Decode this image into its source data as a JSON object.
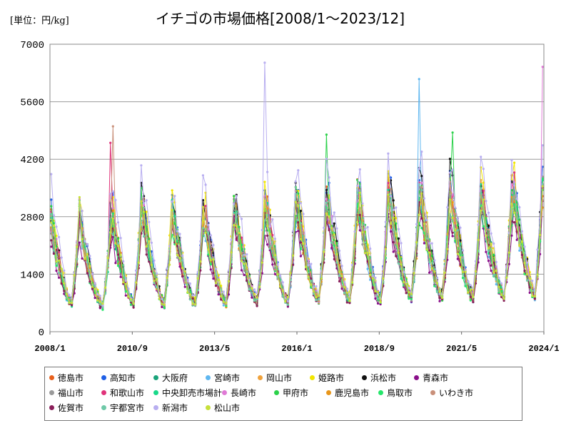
{
  "header": {
    "unit_label": "[単位：円/kg]",
    "title": "イチゴの市場価格[2008/1～2023/12]"
  },
  "chart_data": {
    "type": "line",
    "title": "イチゴの市場価格[2008/1～2023/12]",
    "ylabel": "[単位：円/kg]",
    "xlabel": "",
    "ylim": [
      0,
      7000
    ],
    "yticks": [
      0,
      1400,
      2800,
      4200,
      5600,
      7000
    ],
    "xticks": [
      "2008/1",
      "2010/9",
      "2013/5",
      "2016/1",
      "2018/9",
      "2021/5",
      "2024/1"
    ],
    "grid": "horizontal",
    "legend_position": "bottom",
    "months_per_year": 12,
    "year_start": 2008,
    "year_end": 2023,
    "base_peaks": [
      2900,
      2500,
      2900,
      2900,
      2700,
      2800,
      2900,
      3000,
      3100,
      3100,
      3200,
      3200,
      3300,
      3200,
      3200,
      3500
    ],
    "base_troughs": [
      650,
      600,
      650,
      650,
      650,
      650,
      700,
      700,
      750,
      750,
      750,
      800,
      800,
      800,
      850,
      850
    ],
    "series": [
      {
        "name": "徳島市",
        "color": "#e8601c",
        "offset": 0.05
      },
      {
        "name": "高知市",
        "color": "#1f5fe6",
        "offset": 0.1
      },
      {
        "name": "大阪府",
        "color": "#1aa37a",
        "offset": 0.0
      },
      {
        "name": "宮崎市",
        "color": "#5fb7f0",
        "offset": -0.05
      },
      {
        "name": "岡山市",
        "color": "#f0a23c",
        "offset": 0.02
      },
      {
        "name": "姫路市",
        "color": "#f2e600",
        "offset": 0.15
      },
      {
        "name": "浜松市",
        "color": "#111111",
        "offset": 0.12
      },
      {
        "name": "青森市",
        "color": "#8a0f8a",
        "offset": -0.15
      },
      {
        "name": "福山市",
        "color": "#9a9a9a",
        "offset": -0.02
      },
      {
        "name": "和歌山市",
        "color": "#e0337a",
        "offset": 0.04
      },
      {
        "name": "中央卸売市場計",
        "color": "#19d98a",
        "offset": 0.0
      },
      {
        "name": "長崎市",
        "color": "#e07ad6",
        "offset": 0.03
      },
      {
        "name": "甲府市",
        "color": "#2bd14a",
        "offset": 0.06
      },
      {
        "name": "鹿児島市",
        "color": "#e8961a",
        "offset": -0.03
      },
      {
        "name": "鳥取市",
        "color": "#25e66a",
        "offset": -0.06
      },
      {
        "name": "いわき市",
        "color": "#c9907a",
        "offset": 0.01
      },
      {
        "name": "佐賀市",
        "color": "#8a1f5a",
        "offset": -0.08
      },
      {
        "name": "宇都宮市",
        "color": "#6fc9a8",
        "offset": -0.01
      },
      {
        "name": "新潟市",
        "color": "#b8aef0",
        "offset": 0.25
      },
      {
        "name": "松山市",
        "color": "#c7e03a",
        "offset": 0.0
      }
    ],
    "annotated_spikes": [
      {
        "series": "新潟市",
        "date": "2014/12",
        "value": 6550
      },
      {
        "series": "宮崎市",
        "date": "2019/12",
        "value": 6150
      },
      {
        "series": "長崎市",
        "date": "2023/12",
        "value": 6450
      },
      {
        "series": "和歌山市",
        "date": "2009/12",
        "value": 4600
      },
      {
        "series": "いわき市",
        "date": "2010/1",
        "value": 5000
      },
      {
        "series": "甲府市",
        "date": "2016/12",
        "value": 4800
      },
      {
        "series": "甲府市",
        "date": "2021/1",
        "value": 4850
      }
    ]
  }
}
